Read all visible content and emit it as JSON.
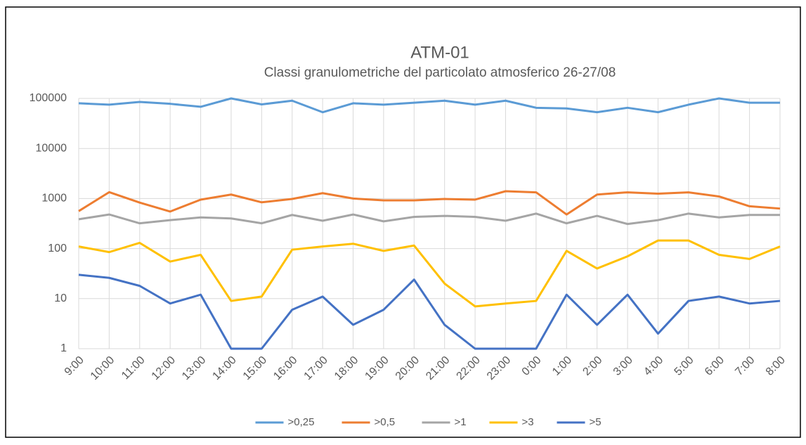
{
  "chart_data": {
    "type": "line",
    "title": "ATM-01",
    "subtitle": "Classi granulometriche del particolato atmosferico 26-27/08",
    "categories": [
      "9:00",
      "10:00",
      "11:00",
      "12:00",
      "13:00",
      "14:00",
      "15:00",
      "16:00",
      "17:00",
      "18:00",
      "19:00",
      "20:00",
      "21:00",
      "22:00",
      "23:00",
      "0:00",
      "1:00",
      "2:00",
      "3:00",
      "4:00",
      "5:00",
      "6:00",
      "7:00",
      "8:00"
    ],
    "series": [
      {
        "name": ">0,25",
        "color": "#5b9bd5",
        "values": [
          80000,
          75000,
          85000,
          78000,
          68000,
          100000,
          76000,
          90000,
          53000,
          80000,
          75000,
          82000,
          90000,
          75000,
          90000,
          65000,
          63000,
          53000,
          65000,
          53000,
          75000,
          100000,
          82000,
          82000
        ]
      },
      {
        "name": ">0,5",
        "color": "#ed7d31",
        "values": [
          560,
          1340,
          830,
          550,
          950,
          1200,
          840,
          980,
          1280,
          1000,
          920,
          920,
          980,
          950,
          1400,
          1330,
          480,
          1200,
          1330,
          1250,
          1330,
          1100,
          700,
          630
        ]
      },
      {
        "name": ">1",
        "color": "#a5a5a5",
        "values": [
          385,
          480,
          320,
          370,
          420,
          400,
          320,
          470,
          360,
          480,
          350,
          430,
          450,
          430,
          360,
          500,
          320,
          450,
          310,
          370,
          500,
          420,
          470,
          470
        ]
      },
      {
        "name": ">3",
        "color": "#ffc000",
        "values": [
          110,
          85,
          130,
          55,
          75,
          9,
          11,
          95,
          110,
          125,
          90,
          115,
          20,
          7,
          8,
          9,
          90,
          40,
          70,
          145,
          145,
          75,
          62,
          110
        ]
      },
      {
        "name": ">5",
        "color": "#4472c4",
        "values": [
          30,
          26,
          18,
          8,
          12,
          1,
          1,
          6,
          11,
          3,
          6,
          24,
          3,
          1,
          1,
          1,
          12,
          3,
          12,
          2,
          9,
          11,
          8,
          9
        ]
      }
    ],
    "ylim": [
      1,
      100000
    ],
    "yticks": [
      1,
      10,
      100,
      1000,
      10000,
      100000
    ],
    "log_scale": true,
    "grid": true,
    "legend": "bottom"
  }
}
